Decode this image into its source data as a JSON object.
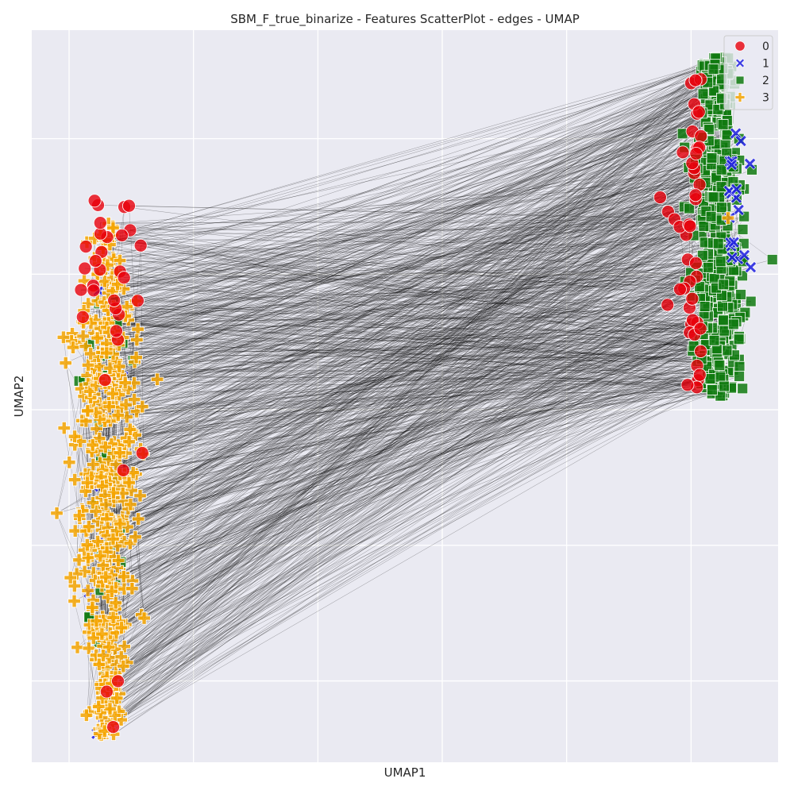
{
  "chart_data": {
    "type": "scatter",
    "title": "SBM_F_true_binarize - Features ScatterPlot - edges - UMAP",
    "xlabel": "UMAP1",
    "ylabel": "UMAP2",
    "tick_labels_visible": false,
    "grid": true,
    "xlim": [
      -0.3,
      5.7
    ],
    "ylim": [
      -0.6,
      4.8
    ],
    "x_gridlines": [
      0,
      1,
      2,
      3,
      4,
      5
    ],
    "y_gridlines": [
      0,
      1,
      2,
      3,
      4
    ],
    "legend": {
      "position": "top-right",
      "entries": [
        {
          "label": "0",
          "marker": "circle",
          "color": "#e8000b"
        },
        {
          "label": "1",
          "marker": "x",
          "color": "#1f1fe0"
        },
        {
          "label": "2",
          "marker": "square",
          "color": "#117a11"
        },
        {
          "label": "3",
          "marker": "plus",
          "color": "#f5a400"
        }
      ]
    },
    "clusters": [
      {
        "name_hint": "left-cluster",
        "x_center": 0.3,
        "x_spread": 0.25,
        "y_range": [
          -0.4,
          3.5
        ]
      },
      {
        "name_hint": "right-cluster",
        "x_center": 5.2,
        "x_spread": 0.28,
        "y_range": [
          2.1,
          4.6
        ]
      }
    ],
    "series": [
      {
        "name": "0",
        "values_note": "nodes of class 0, mostly right cluster edges + top of left cluster"
      },
      {
        "name": "1",
        "values_note": "nodes of class 1, right cluster core"
      },
      {
        "name": "2",
        "values_note": "nodes of class 2, right cluster main body"
      },
      {
        "name": "3",
        "values_note": "nodes of class 3, left cluster main body"
      }
    ],
    "edge_color": "#000000"
  }
}
